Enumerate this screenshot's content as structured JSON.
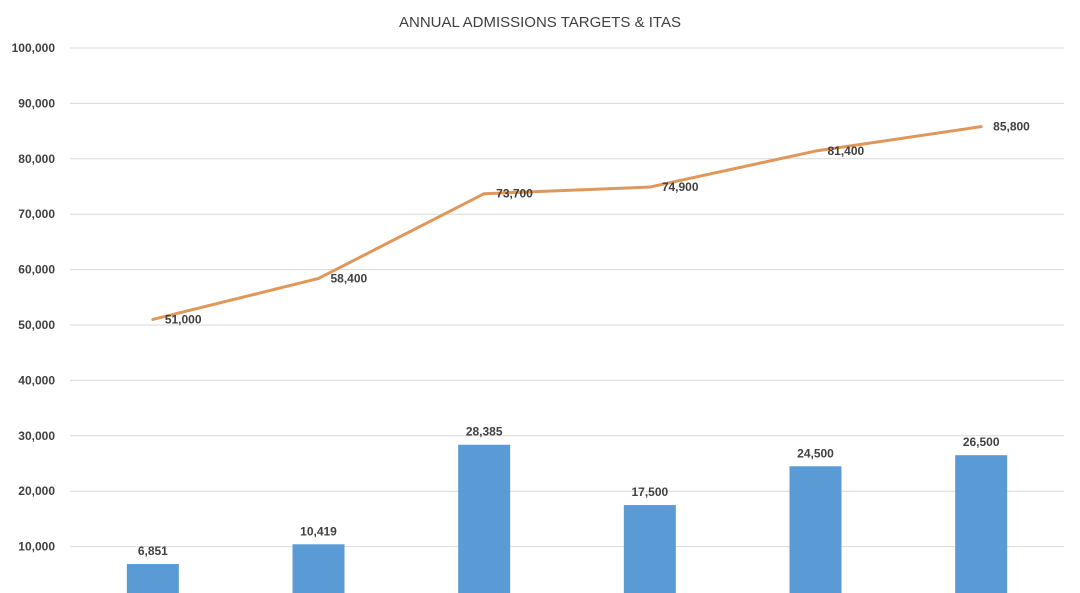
{
  "chart_data": {
    "type": "bar",
    "title": "ANNUAL ADMISSIONS TARGETS & ITAS",
    "xlabel": "",
    "ylabel": "",
    "ylim": [
      0,
      100000
    ],
    "yticks": [
      10000,
      20000,
      30000,
      40000,
      50000,
      60000,
      70000,
      80000,
      90000,
      100000
    ],
    "ytick_labels": [
      "10,000",
      "20,000",
      "30,000",
      "40,000",
      "50,000",
      "60,000",
      "70,000",
      "80,000",
      "90,000",
      "100,000"
    ],
    "grid": true,
    "categories": [
      "",
      "",
      "",
      "",
      "",
      ""
    ],
    "series": [
      {
        "type": "bar",
        "color": "#5b9bd5",
        "values": [
          6851,
          10419,
          28385,
          17500,
          24500,
          26500
        ],
        "labels": [
          "6,851",
          "10,419",
          "28,385",
          "17,500",
          "24,500",
          "26,500"
        ]
      },
      {
        "type": "line",
        "color": "#e0975a",
        "values": [
          51000,
          58400,
          73700,
          74900,
          81400,
          85800
        ],
        "labels": [
          "51,000",
          "58,400",
          "73,700",
          "74,900",
          "81,400",
          "85,800"
        ]
      }
    ]
  }
}
